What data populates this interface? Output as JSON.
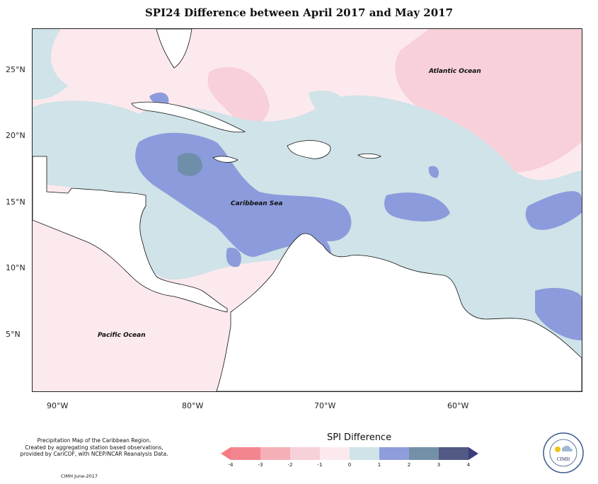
{
  "title": "SPI24 Difference between April 2017 and May 2017",
  "map": {
    "lat_labels": [
      "25°N",
      "20°N",
      "15°N",
      "10°N",
      "5°N"
    ],
    "lon_labels": [
      "90°W",
      "80°W",
      "70°W",
      "60°W"
    ],
    "labels": {
      "atlantic": "Atlantic Ocean",
      "caribbean": "Caribbean Sea",
      "pacific": "Pacific Ocean"
    },
    "colors": {
      "dry_light": "#fce9ee",
      "dry_mid": "#f8d0d9",
      "dry_strong": "#efadb7",
      "wet_light": "#cfe3e8",
      "wet_mid": "#8c9bdc",
      "wet_strong": "#6e8eaa",
      "land": "#ffffff"
    }
  },
  "legend": {
    "title": "SPI Difference",
    "ticks": [
      "-4",
      "-3",
      "-2",
      "-1",
      "0",
      "1",
      "2",
      "3",
      "4"
    ],
    "colors": [
      "#f2858f",
      "#f4b0b6",
      "#f7d1d9",
      "#fbe9ee",
      "#cfe3e8",
      "#8f9ddc",
      "#7490a8",
      "#525a84"
    ],
    "end_left": "#f47c84",
    "end_right": "#3a3c7e"
  },
  "credit": {
    "line1": "Precipitation Map of the Caribbean Region.",
    "line2": "Created by aggregating station based observations,",
    "line3": "provided by CariCOF, with NCEP/NCAR Reanalysis Data.",
    "footer": "CIMH June-2017"
  },
  "logo": {
    "text": "CIMH"
  }
}
